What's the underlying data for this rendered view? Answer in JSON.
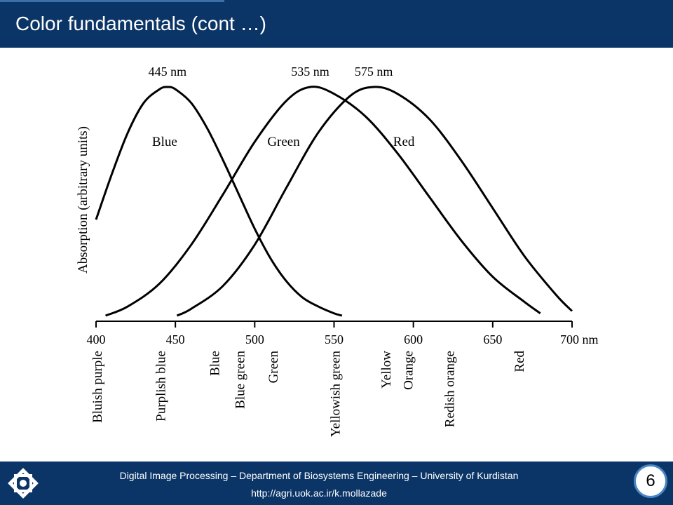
{
  "slide": {
    "title": "Color fundamentals (cont …)",
    "page_number": "6"
  },
  "footer": {
    "line1": "Digital Image Processing – Department of Biosystems Engineering – University of Kurdistan",
    "line2": "http://agri.uok.ac.ir/k.mollazade",
    "logo_icon": "university-logo-icon"
  },
  "colors": {
    "header_bg": "#0b3566",
    "curve": "#000000"
  },
  "chart_data": {
    "type": "line",
    "ylabel": "Absorption (arbitrary units)",
    "x_unit": "nm",
    "xlim": [
      400,
      700
    ],
    "x_ticks": [
      400,
      450,
      500,
      550,
      600,
      650,
      700
    ],
    "x_tick_labels": [
      "400",
      "450",
      "500",
      "550",
      "600",
      "650",
      "700 nm"
    ],
    "peak_labels": [
      "445 nm",
      "535 nm",
      "575 nm"
    ],
    "series": [
      {
        "name": "Blue",
        "peak": 445,
        "x": [
          400,
          410,
          420,
          430,
          440,
          445,
          450,
          460,
          470,
          480,
          490,
          500,
          510,
          520,
          530,
          540,
          550,
          555
        ],
        "y": [
          0.42,
          0.62,
          0.8,
          0.93,
          0.99,
          1.0,
          0.99,
          0.93,
          0.82,
          0.68,
          0.53,
          0.38,
          0.25,
          0.15,
          0.08,
          0.04,
          0.01,
          0.0
        ]
      },
      {
        "name": "Green",
        "peak": 535,
        "x": [
          406,
          420,
          440,
          460,
          480,
          500,
          520,
          535,
          550,
          570,
          590,
          610,
          630,
          650,
          670,
          680
        ],
        "y": [
          0.0,
          0.04,
          0.14,
          0.31,
          0.53,
          0.76,
          0.94,
          1.0,
          0.97,
          0.87,
          0.71,
          0.52,
          0.33,
          0.17,
          0.06,
          0.01
        ]
      },
      {
        "name": "Red",
        "peak": 575,
        "x": [
          451,
          460,
          480,
          500,
          520,
          540,
          560,
          575,
          590,
          610,
          630,
          650,
          670,
          690,
          700
        ],
        "y": [
          0.0,
          0.03,
          0.13,
          0.31,
          0.56,
          0.8,
          0.96,
          1.0,
          0.97,
          0.86,
          0.68,
          0.47,
          0.26,
          0.09,
          0.02
        ]
      }
    ],
    "color_names": [
      {
        "label": "Bluish purple",
        "x": 400
      },
      {
        "label": "Purplish blue",
        "x": 440
      },
      {
        "label": "Blue",
        "x": 474
      },
      {
        "label": "Blue green",
        "x": 490
      },
      {
        "label": "Green",
        "x": 511
      },
      {
        "label": "Yellowish green",
        "x": 550
      },
      {
        "label": "Yellow",
        "x": 582
      },
      {
        "label": "Orange",
        "x": 596
      },
      {
        "label": "Redish orange",
        "x": 622
      },
      {
        "label": "Red",
        "x": 666
      }
    ],
    "grid": false
  }
}
